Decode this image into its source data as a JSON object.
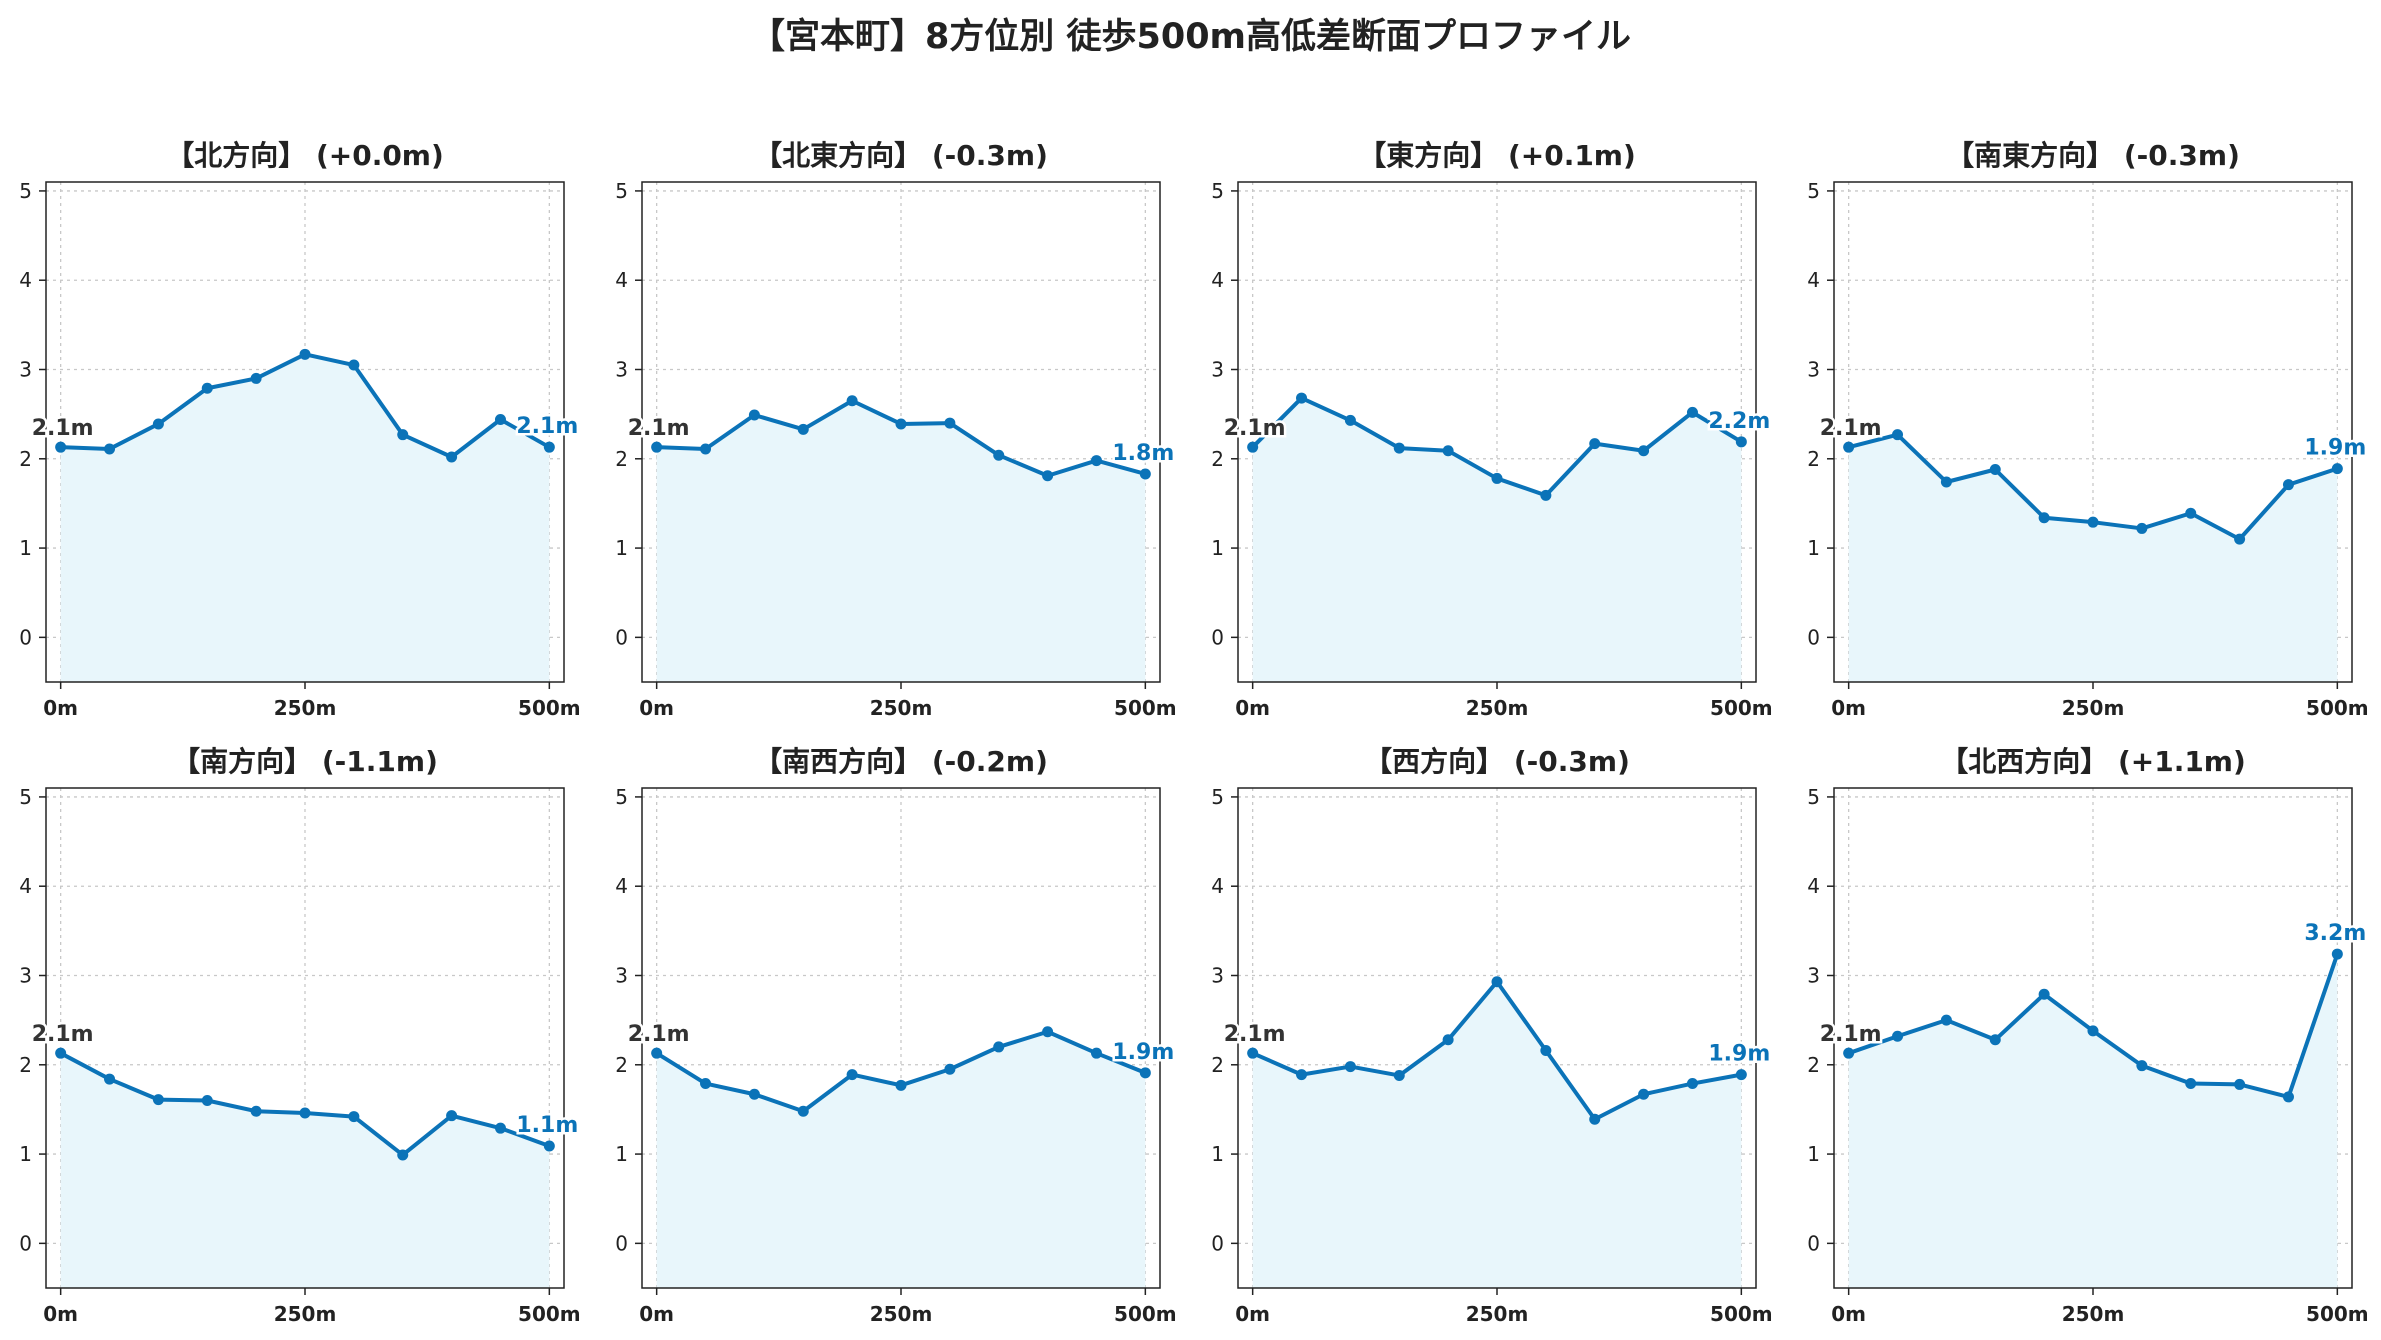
{
  "title": "【宮本町】8方位別 徒歩500m高低差断面プロファイル",
  "colors": {
    "line": "#0b73b8",
    "fill": "#e8f6fb",
    "start_label": "#333333",
    "end_label": "#0b73b8"
  },
  "chart_data": [
    {
      "type": "area",
      "title": "【北方向】 (+0.0m)",
      "x": [
        0,
        50,
        100,
        150,
        200,
        250,
        300,
        350,
        400,
        450,
        500
      ],
      "series": [
        {
          "values": [
            2.13,
            2.11,
            2.39,
            2.79,
            2.9,
            3.17,
            3.05,
            2.27,
            2.02,
            2.44,
            2.13
          ]
        }
      ],
      "start_label": "2.1m",
      "end_label": "2.1m",
      "xticks": [
        "0m",
        "250m",
        "500m"
      ],
      "yticks": [
        "0",
        "1",
        "2",
        "3",
        "4",
        "5"
      ],
      "xlim": [
        -15,
        515
      ],
      "ylim": [
        -0.5,
        5.1
      ],
      "grid": true
    },
    {
      "type": "area",
      "title": "【北東方向】 (-0.3m)",
      "x": [
        0,
        50,
        100,
        150,
        200,
        250,
        300,
        350,
        400,
        450,
        500
      ],
      "series": [
        {
          "values": [
            2.13,
            2.11,
            2.49,
            2.33,
            2.65,
            2.39,
            2.4,
            2.04,
            1.81,
            1.98,
            1.83
          ]
        }
      ],
      "start_label": "2.1m",
      "end_label": "1.8m",
      "xticks": [
        "0m",
        "250m",
        "500m"
      ],
      "yticks": [
        "0",
        "1",
        "2",
        "3",
        "4",
        "5"
      ],
      "xlim": [
        -15,
        515
      ],
      "ylim": [
        -0.5,
        5.1
      ],
      "grid": true
    },
    {
      "type": "area",
      "title": "【東方向】 (+0.1m)",
      "x": [
        0,
        50,
        100,
        150,
        200,
        250,
        300,
        350,
        400,
        450,
        500
      ],
      "series": [
        {
          "values": [
            2.13,
            2.68,
            2.43,
            2.12,
            2.09,
            1.78,
            1.59,
            2.17,
            2.09,
            2.52,
            2.19
          ]
        }
      ],
      "start_label": "2.1m",
      "end_label": "2.2m",
      "xticks": [
        "0m",
        "250m",
        "500m"
      ],
      "yticks": [
        "0",
        "1",
        "2",
        "3",
        "4",
        "5"
      ],
      "xlim": [
        -15,
        515
      ],
      "ylim": [
        -0.5,
        5.1
      ],
      "grid": true
    },
    {
      "type": "area",
      "title": "【南東方向】 (-0.3m)",
      "x": [
        0,
        50,
        100,
        150,
        200,
        250,
        300,
        350,
        400,
        450,
        500
      ],
      "series": [
        {
          "values": [
            2.13,
            2.27,
            1.74,
            1.88,
            1.34,
            1.29,
            1.22,
            1.39,
            1.1,
            1.71,
            1.89
          ]
        }
      ],
      "start_label": "2.1m",
      "end_label": "1.9m",
      "xticks": [
        "0m",
        "250m",
        "500m"
      ],
      "yticks": [
        "0",
        "1",
        "2",
        "3",
        "4",
        "5"
      ],
      "xlim": [
        -15,
        515
      ],
      "ylim": [
        -0.5,
        5.1
      ],
      "grid": true
    },
    {
      "type": "area",
      "title": "【南方向】 (-1.1m)",
      "x": [
        0,
        50,
        100,
        150,
        200,
        250,
        300,
        350,
        400,
        450,
        500
      ],
      "series": [
        {
          "values": [
            2.13,
            1.84,
            1.61,
            1.6,
            1.48,
            1.46,
            1.42,
            0.99,
            1.43,
            1.29,
            1.09
          ]
        }
      ],
      "start_label": "2.1m",
      "end_label": "1.1m",
      "xticks": [
        "0m",
        "250m",
        "500m"
      ],
      "yticks": [
        "0",
        "1",
        "2",
        "3",
        "4",
        "5"
      ],
      "xlim": [
        -15,
        515
      ],
      "ylim": [
        -0.5,
        5.1
      ],
      "grid": true
    },
    {
      "type": "area",
      "title": "【南西方向】 (-0.2m)",
      "x": [
        0,
        50,
        100,
        150,
        200,
        250,
        300,
        350,
        400,
        450,
        500
      ],
      "series": [
        {
          "values": [
            2.13,
            1.79,
            1.67,
            1.48,
            1.89,
            1.77,
            1.95,
            2.2,
            2.37,
            2.13,
            1.91
          ]
        }
      ],
      "start_label": "2.1m",
      "end_label": "1.9m",
      "xticks": [
        "0m",
        "250m",
        "500m"
      ],
      "yticks": [
        "0",
        "1",
        "2",
        "3",
        "4",
        "5"
      ],
      "xlim": [
        -15,
        515
      ],
      "ylim": [
        -0.5,
        5.1
      ],
      "grid": true
    },
    {
      "type": "area",
      "title": "【西方向】 (-0.3m)",
      "x": [
        0,
        50,
        100,
        150,
        200,
        250,
        300,
        350,
        400,
        450,
        500
      ],
      "series": [
        {
          "values": [
            2.13,
            1.89,
            1.98,
            1.88,
            2.28,
            2.93,
            2.16,
            1.39,
            1.67,
            1.79,
            1.89
          ]
        }
      ],
      "start_label": "2.1m",
      "end_label": "1.9m",
      "xticks": [
        "0m",
        "250m",
        "500m"
      ],
      "yticks": [
        "0",
        "1",
        "2",
        "3",
        "4",
        "5"
      ],
      "xlim": [
        -15,
        515
      ],
      "ylim": [
        -0.5,
        5.1
      ],
      "grid": true
    },
    {
      "type": "area",
      "title": "【北西方向】 (+1.1m)",
      "x": [
        0,
        50,
        100,
        150,
        200,
        250,
        300,
        350,
        400,
        450,
        500
      ],
      "series": [
        {
          "values": [
            2.13,
            2.32,
            2.5,
            2.28,
            2.79,
            2.38,
            1.99,
            1.79,
            1.78,
            1.64,
            3.24
          ]
        }
      ],
      "start_label": "2.1m",
      "end_label": "3.2m",
      "xticks": [
        "0m",
        "250m",
        "500m"
      ],
      "yticks": [
        "0",
        "1",
        "2",
        "3",
        "4",
        "5"
      ],
      "xlim": [
        -15,
        515
      ],
      "ylim": [
        -0.5,
        5.1
      ],
      "grid": true
    }
  ]
}
